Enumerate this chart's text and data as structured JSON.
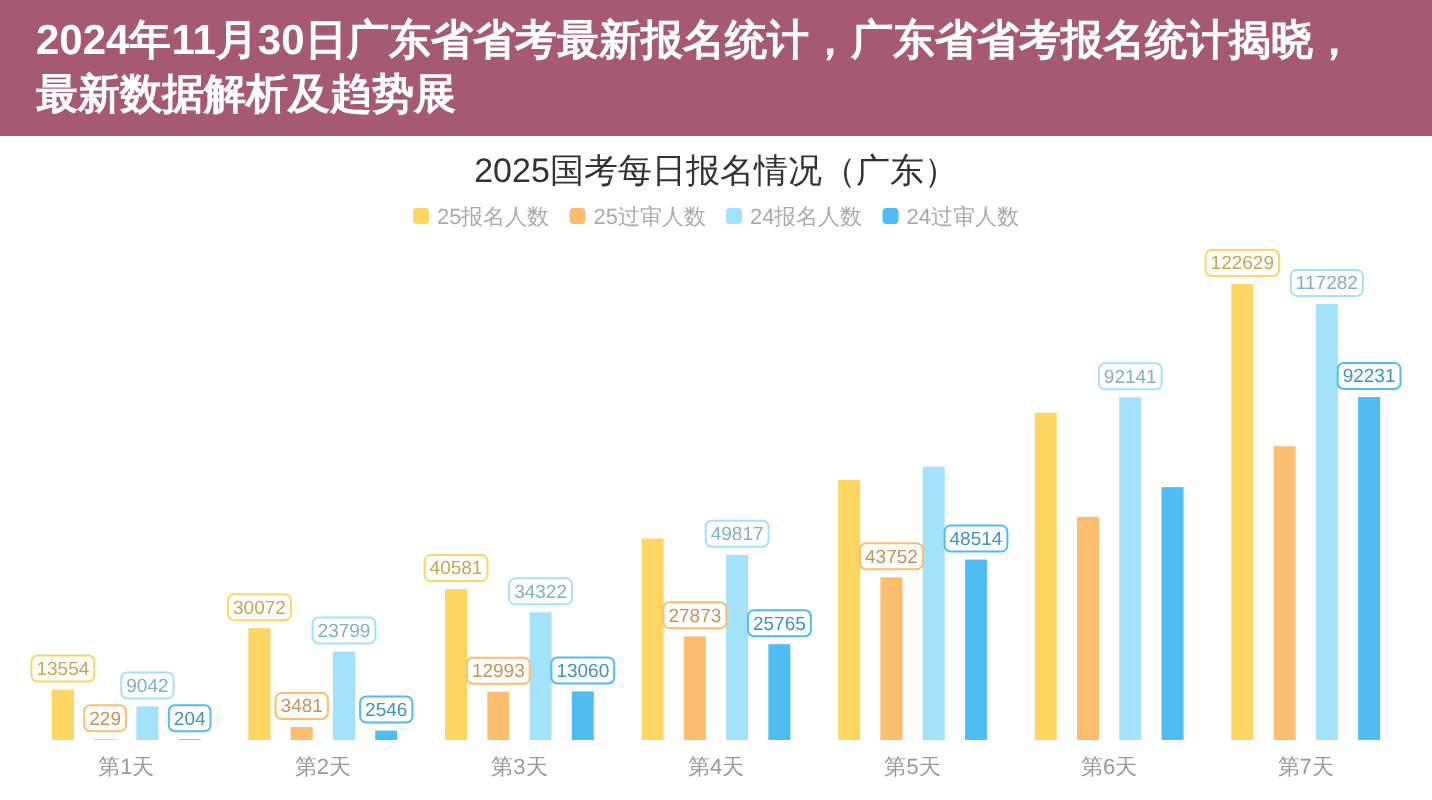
{
  "chart_data": {
    "type": "bar",
    "title": "2025国考每日报名情况（广东）",
    "annotations": [
      "2024年11月30日广东省省考最新报名统计，广东省省考报名统计揭晓，最新数据解析及趋势展"
    ],
    "categories": [
      "第1天",
      "第2天",
      "第3天",
      "第4天",
      "第5天",
      "第6天",
      "第7天"
    ],
    "series": [
      {
        "name": "25报名人数",
        "color": "#fdd663",
        "values": [
          13554,
          30072,
          40581,
          54200,
          70000,
          88000,
          122629
        ],
        "value_labels": [
          "13554",
          "30072",
          "40581",
          null,
          null,
          null,
          "122629"
        ]
      },
      {
        "name": "25过审人数",
        "color": "#fbbd6e",
        "values": [
          229,
          3481,
          12993,
          27873,
          43752,
          60000,
          79000
        ],
        "value_labels": [
          "229",
          "3481",
          "12993",
          "27873",
          "43752",
          null,
          null
        ]
      },
      {
        "name": "24报名人数",
        "color": "#a4e2fa",
        "values": [
          9042,
          23799,
          34322,
          49817,
          73500,
          92141,
          117282
        ],
        "value_labels": [
          "9042",
          "23799",
          "34322",
          "49817",
          null,
          "92141",
          "117282"
        ]
      },
      {
        "name": "24过审人数",
        "color": "#4fbdf2",
        "values": [
          204,
          2546,
          13060,
          25765,
          48514,
          68000,
          92231
        ],
        "value_labels": [
          "204",
          "2546",
          "13060",
          "25765",
          "48514",
          null,
          "92231"
        ]
      }
    ],
    "tick_labels": "x",
    "legend": "top"
  }
}
